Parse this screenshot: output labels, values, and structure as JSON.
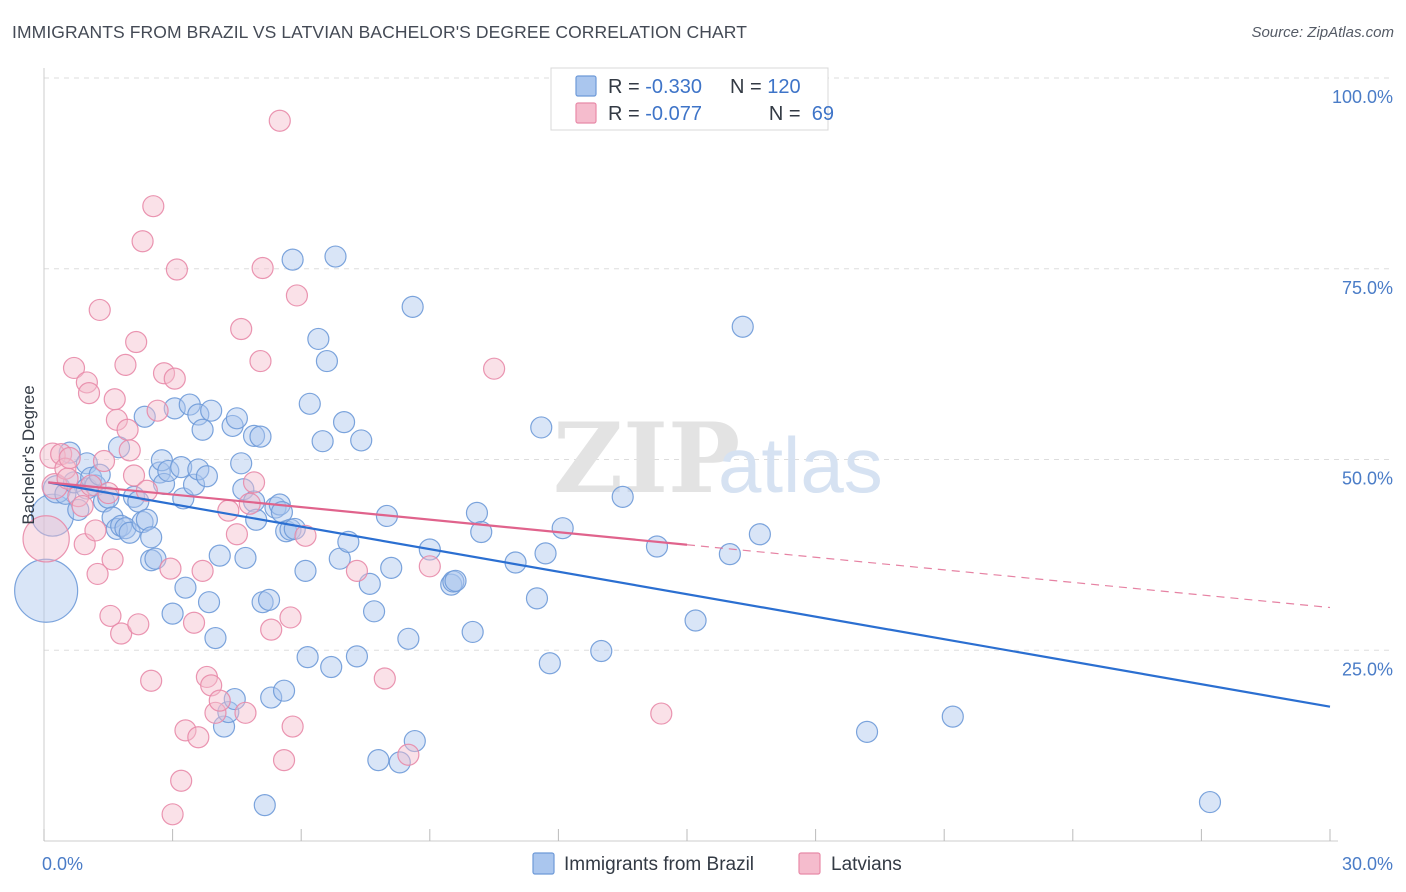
{
  "title": "IMMIGRANTS FROM BRAZIL VS LATVIAN BACHELOR'S DEGREE CORRELATION CHART",
  "source": "Source: ZipAtlas.com",
  "watermark": {
    "zip": "ZIP",
    "atlas": "atlas"
  },
  "colors": {
    "blue_fill": "#aac6ee",
    "blue_stroke": "#6e9ad8",
    "blue_line": "#2b6fd1",
    "pink_fill": "#f5bccd",
    "pink_stroke": "#e88aa8",
    "pink_line": "#e0638c",
    "tick_text": "#4a7cc7",
    "grid": "#dddddd"
  },
  "legend": {
    "rows": [
      {
        "r_label": "R = ",
        "r_value": "-0.330",
        "n_label": "N = ",
        "n_value": "120"
      },
      {
        "r_label": "R = ",
        "r_value": "-0.077",
        "n_label": "N = ",
        "n_value": " 69"
      }
    ]
  },
  "chart_data": {
    "type": "scatter",
    "title": "IMMIGRANTS FROM BRAZIL VS LATVIAN BACHELOR'S DEGREE CORRELATION CHART",
    "xlabel": "",
    "ylabel": "Bachelor's Degree",
    "xlim": [
      0,
      30
    ],
    "ylim": [
      0,
      100
    ],
    "x_tick_labels": [
      "0.0%",
      "30.0%"
    ],
    "y_ticks": [
      25,
      50,
      75,
      100
    ],
    "y_tick_labels": [
      "25.0%",
      "50.0%",
      "75.0%",
      "100.0%"
    ],
    "grid": true,
    "legend_position": "top-center",
    "series": [
      {
        "name": "Immigrants from Brazil",
        "color": "#aac6ee",
        "r": -0.33,
        "n": 120,
        "trend": {
          "x": [
            0.1,
            30
          ],
          "y": [
            47.0,
            17.6
          ],
          "style": "solid",
          "x_solid_end": 30
        },
        "points": [
          [
            0.05,
            32.8,
            3
          ],
          [
            0.2,
            42.7,
            2
          ],
          [
            0.3,
            46.1,
            1.3
          ],
          [
            0.5,
            45.5,
            1
          ],
          [
            0.6,
            50.9,
            1
          ],
          [
            0.7,
            47.0,
            1
          ],
          [
            0.8,
            43.4,
            1
          ],
          [
            1.0,
            49.5,
            1
          ],
          [
            1.0,
            46.2,
            1
          ],
          [
            1.1,
            47.6,
            1
          ],
          [
            1.2,
            46.6,
            1
          ],
          [
            1.3,
            48.0,
            1
          ],
          [
            1.4,
            44.5,
            1
          ],
          [
            1.5,
            45.0,
            1
          ],
          [
            1.6,
            42.4,
            1
          ],
          [
            1.7,
            40.9,
            1
          ],
          [
            1.75,
            51.6,
            1
          ],
          [
            1.8,
            41.3,
            1
          ],
          [
            1.9,
            41.0,
            1
          ],
          [
            2.0,
            40.4,
            1
          ],
          [
            2.1,
            45.1,
            1
          ],
          [
            2.2,
            44.5,
            1
          ],
          [
            2.3,
            41.8,
            1
          ],
          [
            2.35,
            55.6,
            1
          ],
          [
            2.4,
            42.1,
            1
          ],
          [
            2.5,
            39.8,
            1
          ],
          [
            2.5,
            36.8,
            1
          ],
          [
            2.6,
            37.0,
            1
          ],
          [
            2.7,
            48.3,
            1
          ],
          [
            2.75,
            49.9,
            1
          ],
          [
            2.8,
            46.8,
            1
          ],
          [
            2.9,
            48.5,
            1
          ],
          [
            3.0,
            29.8,
            1
          ],
          [
            3.05,
            56.7,
            1
          ],
          [
            3.2,
            49.0,
            1
          ],
          [
            3.25,
            44.9,
            1
          ],
          [
            3.3,
            33.2,
            1
          ],
          [
            3.4,
            57.2,
            1
          ],
          [
            3.5,
            46.7,
            1
          ],
          [
            3.6,
            55.9,
            1
          ],
          [
            3.6,
            48.7,
            1
          ],
          [
            3.7,
            53.9,
            1
          ],
          [
            3.8,
            47.8,
            1
          ],
          [
            3.85,
            31.3,
            1
          ],
          [
            3.9,
            56.4,
            1
          ],
          [
            4.0,
            26.6,
            1
          ],
          [
            4.1,
            37.4,
            1
          ],
          [
            4.2,
            15.0,
            1
          ],
          [
            4.3,
            16.9,
            1
          ],
          [
            4.4,
            54.4,
            1
          ],
          [
            4.45,
            18.6,
            1
          ],
          [
            4.5,
            55.4,
            1
          ],
          [
            4.6,
            49.5,
            1
          ],
          [
            4.65,
            46.1,
            1
          ],
          [
            4.7,
            37.1,
            1
          ],
          [
            4.9,
            53.1,
            1
          ],
          [
            4.9,
            44.5,
            1
          ],
          [
            4.95,
            42.1,
            1
          ],
          [
            5.05,
            53.0,
            1
          ],
          [
            5.1,
            31.3,
            1
          ],
          [
            5.15,
            4.7,
            1
          ],
          [
            5.25,
            31.6,
            1
          ],
          [
            5.3,
            18.8,
            1
          ],
          [
            5.4,
            43.7,
            1
          ],
          [
            5.5,
            44.1,
            1
          ],
          [
            5.55,
            43.1,
            1
          ],
          [
            5.6,
            19.7,
            1
          ],
          [
            5.65,
            40.6,
            1
          ],
          [
            5.75,
            40.8,
            1
          ],
          [
            5.8,
            76.2,
            1
          ],
          [
            5.85,
            40.9,
            1
          ],
          [
            6.1,
            35.4,
            1
          ],
          [
            6.15,
            24.1,
            1
          ],
          [
            6.2,
            57.3,
            1
          ],
          [
            6.4,
            65.8,
            1
          ],
          [
            6.5,
            52.4,
            1
          ],
          [
            6.6,
            62.9,
            1
          ],
          [
            6.7,
            22.8,
            1
          ],
          [
            6.8,
            76.6,
            1
          ],
          [
            6.9,
            37.0,
            1
          ],
          [
            7.0,
            54.9,
            1
          ],
          [
            7.1,
            39.2,
            1
          ],
          [
            7.3,
            24.2,
            1
          ],
          [
            7.4,
            52.5,
            1
          ],
          [
            7.6,
            33.7,
            1
          ],
          [
            7.7,
            30.1,
            1
          ],
          [
            7.8,
            10.6,
            1
          ],
          [
            8.0,
            42.6,
            1
          ],
          [
            8.1,
            35.8,
            1
          ],
          [
            8.3,
            10.3,
            1
          ],
          [
            8.5,
            26.5,
            1
          ],
          [
            8.6,
            70.0,
            1
          ],
          [
            8.65,
            13.1,
            1
          ],
          [
            9.0,
            38.2,
            1
          ],
          [
            9.5,
            33.6,
            1
          ],
          [
            9.55,
            34.0,
            1
          ],
          [
            9.6,
            34.1,
            1
          ],
          [
            10.0,
            27.4,
            1
          ],
          [
            10.1,
            43.0,
            1
          ],
          [
            10.2,
            40.5,
            1
          ],
          [
            11.0,
            36.5,
            1
          ],
          [
            11.5,
            31.8,
            1
          ],
          [
            11.6,
            54.2,
            1
          ],
          [
            11.7,
            37.7,
            1
          ],
          [
            11.8,
            23.3,
            1
          ],
          [
            12.1,
            41.0,
            1
          ],
          [
            13.0,
            24.9,
            1
          ],
          [
            13.5,
            45.1,
            1
          ],
          [
            14.3,
            38.6,
            1
          ],
          [
            15.2,
            28.9,
            1
          ],
          [
            16.0,
            37.6,
            1
          ],
          [
            16.3,
            67.4,
            1
          ],
          [
            16.7,
            40.2,
            1
          ],
          [
            19.2,
            14.3,
            1
          ],
          [
            21.2,
            16.3,
            1
          ],
          [
            27.2,
            5.1,
            1
          ]
        ]
      },
      {
        "name": "Latvians",
        "color": "#f5bccd",
        "r": -0.077,
        "n": 69,
        "trend": {
          "x": [
            0.1,
            30
          ],
          "y": [
            47.0,
            30.6
          ],
          "style": "dashed",
          "x_solid_end": 15.0
        },
        "points": [
          [
            0.05,
            39.6,
            2.2
          ],
          [
            0.2,
            50.5,
            1.2
          ],
          [
            0.25,
            46.5,
            1.2
          ],
          [
            0.4,
            50.7,
            1
          ],
          [
            0.5,
            48.8,
            1
          ],
          [
            0.55,
            47.5,
            1
          ],
          [
            0.6,
            50.2,
            1
          ],
          [
            0.7,
            62.0,
            1
          ],
          [
            0.8,
            45.2,
            1
          ],
          [
            0.9,
            43.9,
            1
          ],
          [
            0.95,
            38.9,
            1
          ],
          [
            1.0,
            60.1,
            1
          ],
          [
            1.05,
            58.7,
            1
          ],
          [
            1.1,
            46.6,
            1
          ],
          [
            1.2,
            40.7,
            1
          ],
          [
            1.25,
            35.0,
            1
          ],
          [
            1.3,
            69.6,
            1
          ],
          [
            1.4,
            49.8,
            1
          ],
          [
            1.5,
            45.6,
            1
          ],
          [
            1.55,
            29.5,
            1
          ],
          [
            1.6,
            36.9,
            1
          ],
          [
            1.65,
            57.9,
            1
          ],
          [
            1.7,
            55.2,
            1
          ],
          [
            1.8,
            27.2,
            1
          ],
          [
            1.9,
            62.4,
            1
          ],
          [
            1.95,
            53.9,
            1
          ],
          [
            2.0,
            51.2,
            1
          ],
          [
            2.1,
            47.9,
            1
          ],
          [
            2.15,
            65.4,
            1
          ],
          [
            2.2,
            28.4,
            1
          ],
          [
            2.3,
            78.6,
            1
          ],
          [
            2.4,
            45.9,
            1
          ],
          [
            2.5,
            21.0,
            1
          ],
          [
            2.55,
            83.2,
            1
          ],
          [
            2.65,
            56.4,
            1
          ],
          [
            2.8,
            61.3,
            1
          ],
          [
            2.95,
            35.7,
            1
          ],
          [
            3.0,
            3.5,
            1
          ],
          [
            3.05,
            60.6,
            1
          ],
          [
            3.1,
            74.9,
            1
          ],
          [
            3.2,
            7.9,
            1
          ],
          [
            3.3,
            14.5,
            1
          ],
          [
            3.5,
            28.6,
            1
          ],
          [
            3.6,
            13.6,
            1
          ],
          [
            3.7,
            35.4,
            1
          ],
          [
            3.8,
            21.5,
            1
          ],
          [
            3.9,
            20.4,
            1
          ],
          [
            4.0,
            16.8,
            1
          ],
          [
            4.1,
            18.4,
            1
          ],
          [
            4.3,
            43.3,
            1
          ],
          [
            4.5,
            40.2,
            1
          ],
          [
            4.6,
            67.1,
            1
          ],
          [
            4.7,
            16.8,
            1
          ],
          [
            4.8,
            44.2,
            1
          ],
          [
            4.9,
            47.0,
            1
          ],
          [
            5.05,
            62.9,
            1
          ],
          [
            5.1,
            75.1,
            1
          ],
          [
            5.3,
            27.7,
            1
          ],
          [
            5.5,
            94.4,
            1
          ],
          [
            5.6,
            10.6,
            1
          ],
          [
            5.75,
            29.3,
            1
          ],
          [
            5.8,
            15.0,
            1
          ],
          [
            5.9,
            71.5,
            1
          ],
          [
            6.1,
            40.0,
            1
          ],
          [
            7.3,
            35.4,
            1
          ],
          [
            7.95,
            21.3,
            1
          ],
          [
            8.5,
            11.3,
            1
          ],
          [
            9.0,
            36.0,
            1
          ],
          [
            10.5,
            61.9,
            1
          ],
          [
            14.4,
            16.7,
            1
          ]
        ]
      }
    ]
  },
  "bottom_legend": [
    {
      "label": "Immigrants from Brazil"
    },
    {
      "label": "Latvians"
    }
  ]
}
